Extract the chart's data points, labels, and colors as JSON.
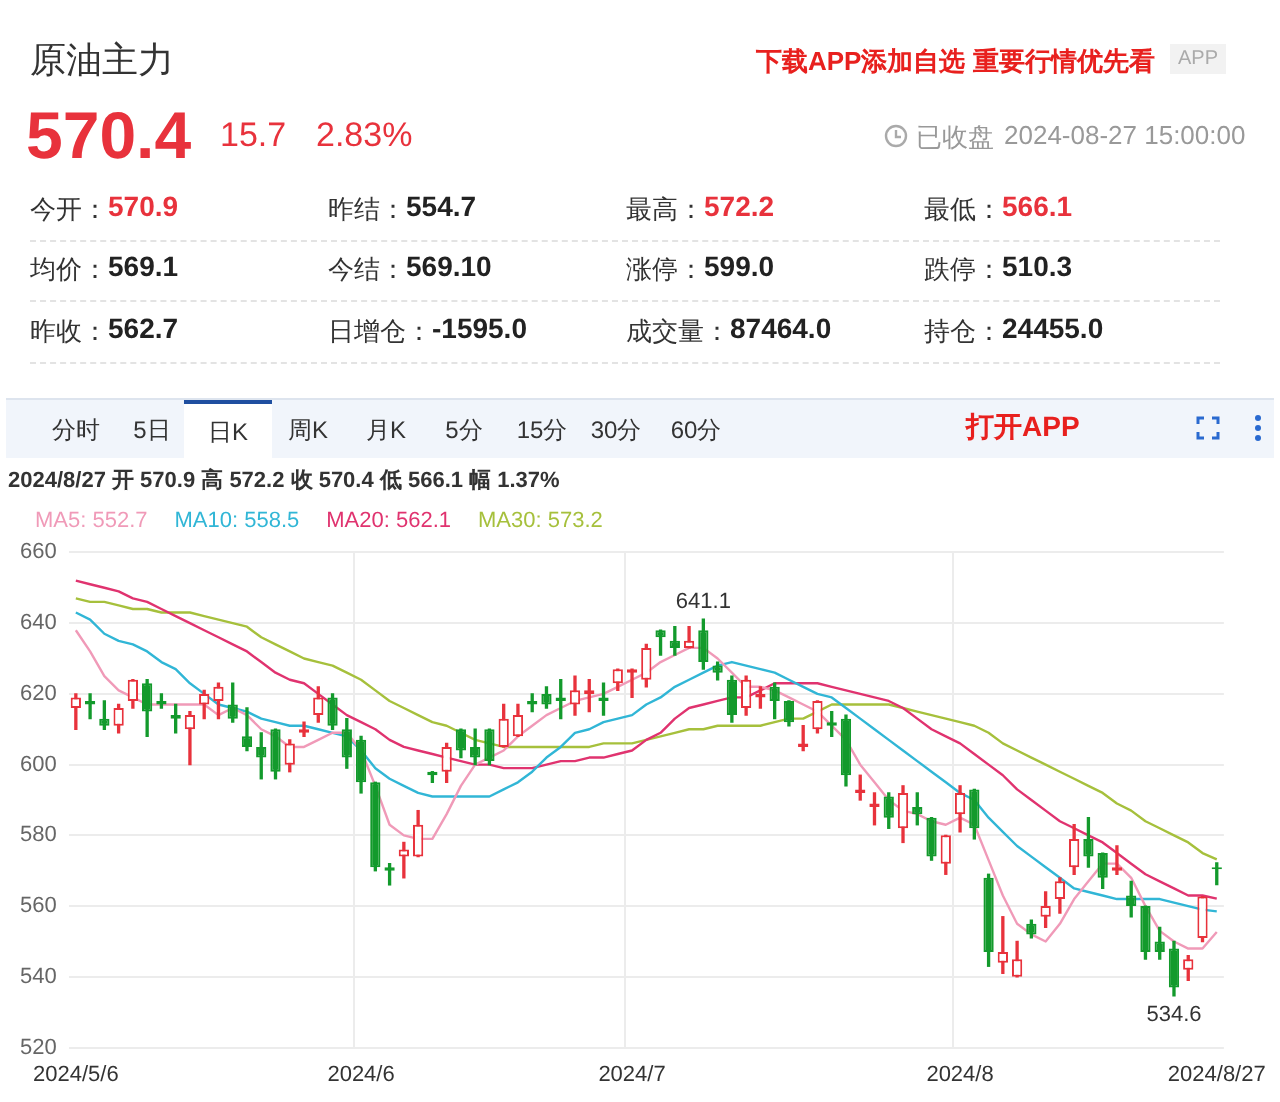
{
  "chart_data": [
    {
      "type": "other",
      "title": "原油主力",
      "annotations": [
        "570.4",
        "15.7",
        "2.83%",
        "已收盘",
        "2024-08-27 15:00:00",
        "下载APP添加自选 重要行情优先看",
        "APP",
        "今开：",
        "570.9",
        "昨结：",
        "554.7",
        "最高：",
        "572.2",
        "最低：",
        "566.1",
        "均价：",
        "569.1",
        "今结：",
        "569.10",
        "涨停：",
        "599.0",
        "跌停：",
        "510.3",
        "昨收：",
        "562.7",
        "日增仓：",
        "-1595.0",
        "成交量：",
        "87464.0",
        "持仓：",
        "24455.0",
        "分时",
        "5日",
        "日K",
        "周K",
        "月K",
        "5分",
        "15分",
        "30分",
        "60分",
        "打开APP"
      ]
    },
    {
      "type": "candlestick",
      "title": "2024/8/27 开 570.9 高 572.2 收 570.4 低 566.1 幅 1.37%",
      "categories": [
        "2024/5/6",
        null,
        null,
        null,
        null,
        null,
        null,
        null,
        null,
        null,
        null,
        null,
        null,
        null,
        null,
        null,
        null,
        null,
        null,
        null,
        "2024/6",
        null,
        null,
        null,
        null,
        null,
        null,
        null,
        null,
        null,
        null,
        null,
        null,
        null,
        null,
        null,
        null,
        null,
        null,
        "2024/7",
        null,
        null,
        null,
        null,
        null,
        null,
        null,
        null,
        null,
        null,
        null,
        null,
        null,
        null,
        null,
        null,
        null,
        null,
        null,
        null,
        null,
        null,
        "2024/8",
        null,
        null,
        null,
        null,
        null,
        null,
        null,
        null,
        null,
        null,
        null,
        null,
        null,
        null,
        null,
        null,
        null,
        "2024/8/27"
      ],
      "ohlc": [
        [
          616,
          620,
          610,
          619
        ],
        [
          618,
          620,
          613,
          617
        ],
        [
          613,
          618,
          610,
          611
        ],
        [
          611,
          617,
          609,
          616
        ],
        [
          618,
          624,
          616,
          624
        ],
        [
          623,
          624,
          608,
          615
        ],
        [
          618,
          620,
          616,
          617
        ],
        [
          614,
          617,
          609,
          613
        ],
        [
          610,
          615,
          600,
          614
        ],
        [
          617,
          621,
          613,
          620
        ],
        [
          618,
          623,
          613,
          622
        ],
        [
          617,
          623,
          612,
          613
        ],
        [
          608,
          616,
          604,
          605
        ],
        [
          605,
          609,
          596,
          602
        ],
        [
          610,
          610,
          596,
          598
        ],
        [
          600,
          607,
          598,
          606
        ],
        [
          609,
          612,
          608,
          610
        ],
        [
          614,
          622,
          612,
          619
        ],
        [
          619,
          620,
          610,
          611
        ],
        [
          610,
          613,
          599,
          602
        ],
        [
          607,
          608,
          592,
          595
        ],
        [
          595,
          595,
          570,
          571
        ],
        [
          571,
          572,
          566,
          570
        ],
        [
          574,
          578,
          568,
          576
        ],
        [
          574,
          587,
          574,
          583
        ],
        [
          598,
          598,
          595,
          597
        ],
        [
          598,
          606,
          595,
          605
        ],
        [
          610,
          610,
          602,
          604
        ],
        [
          605,
          610,
          600,
          602
        ],
        [
          610,
          610,
          600,
          601
        ],
        [
          605,
          617,
          605,
          613
        ],
        [
          608,
          617,
          608,
          614
        ],
        [
          618,
          620,
          615,
          617
        ],
        [
          620,
          622,
          616,
          617
        ],
        [
          619,
          624,
          613,
          618
        ],
        [
          617,
          625,
          614,
          621
        ],
        [
          620,
          624,
          615,
          621
        ],
        [
          619,
          623,
          614,
          618
        ],
        [
          623,
          627,
          621,
          627
        ],
        [
          626,
          627,
          619,
          627
        ],
        [
          624,
          634,
          622,
          633
        ],
        [
          638,
          638,
          631,
          636
        ],
        [
          635,
          639,
          631,
          633
        ],
        [
          633,
          639,
          633,
          635
        ],
        [
          638,
          641.1,
          627,
          629
        ],
        [
          628,
          629,
          624,
          626
        ],
        [
          624,
          625,
          612,
          614
        ],
        [
          616,
          625,
          614,
          624
        ],
        [
          619,
          622,
          616,
          620
        ],
        [
          622,
          623,
          613,
          618
        ],
        [
          618,
          618,
          611,
          612
        ],
        [
          605,
          611,
          604,
          606
        ],
        [
          610,
          618,
          609,
          618
        ],
        [
          612,
          615,
          608,
          611
        ],
        [
          613,
          614,
          594,
          597
        ],
        [
          592,
          597,
          590,
          593
        ],
        [
          588,
          592,
          583,
          589
        ],
        [
          591,
          592,
          582,
          585
        ],
        [
          582,
          594,
          578,
          592
        ],
        [
          588,
          592,
          583,
          586
        ],
        [
          585,
          585,
          573,
          574
        ],
        [
          572,
          580,
          569,
          580
        ],
        [
          586,
          594,
          581,
          592
        ],
        [
          593,
          593,
          579,
          582
        ],
        [
          568,
          569,
          543,
          547
        ],
        [
          544,
          557,
          541,
          547
        ],
        [
          540,
          550,
          540,
          545
        ],
        [
          555,
          556,
          551,
          552
        ],
        [
          557,
          564,
          554,
          560
        ],
        [
          562,
          568,
          558,
          567
        ],
        [
          571,
          583,
          569,
          579
        ],
        [
          579,
          585,
          571,
          574
        ],
        [
          575,
          575,
          565,
          568
        ],
        [
          570,
          577,
          569,
          571
        ],
        [
          563,
          567,
          557,
          560
        ],
        [
          560,
          560,
          545,
          547
        ],
        [
          550,
          554,
          545,
          547
        ],
        [
          548,
          550,
          534.6,
          537
        ],
        [
          542,
          546,
          539,
          545
        ],
        [
          551,
          562.7,
          550,
          562.7
        ],
        [
          570.9,
          572.2,
          566.1,
          570.4
        ]
      ],
      "series": [
        {
          "name": "MA5: 552.7",
          "type": "line",
          "color": "#f09ab8",
          "values": [
            638,
            632,
            625,
            621,
            619,
            617,
            617,
            617,
            617,
            617,
            614,
            616,
            614,
            610,
            608,
            605,
            605,
            607,
            609,
            609,
            604,
            594,
            583,
            580,
            579,
            579,
            586,
            594,
            600,
            602,
            604,
            608,
            611,
            614,
            616,
            618,
            619,
            620,
            622,
            624,
            626,
            629,
            631,
            633,
            633,
            630,
            626,
            622,
            622,
            621,
            619,
            617,
            615,
            611,
            607,
            600,
            595,
            590,
            587,
            586,
            584,
            583,
            585,
            583,
            573,
            563,
            555,
            552,
            550,
            555,
            562,
            567,
            572,
            572,
            568,
            560,
            553,
            550,
            548,
            548,
            552.7
          ]
        },
        {
          "name": "MA10: 558.5",
          "type": "line",
          "color": "#31b6d6",
          "values": [
            643,
            641,
            637,
            635,
            634,
            632,
            629,
            627,
            623,
            620,
            617,
            616,
            615,
            613,
            612,
            611,
            611,
            610,
            609,
            608,
            604,
            599,
            596,
            594,
            592,
            591,
            591,
            591,
            591,
            591,
            593,
            595,
            598,
            602,
            605,
            609,
            610,
            612,
            613,
            614,
            617,
            619,
            622,
            624,
            626,
            628,
            629,
            628,
            627,
            626,
            624,
            622,
            620,
            619,
            616,
            613,
            610,
            607,
            604,
            601,
            598,
            595,
            592,
            590,
            585,
            581,
            577,
            574,
            571,
            568,
            565,
            564,
            563,
            562,
            562,
            562,
            562,
            561,
            560,
            559,
            558.5
          ]
        },
        {
          "name": "MA20: 562.1",
          "type": "line",
          "color": "#e0336f",
          "values": [
            652,
            651,
            650,
            649,
            647,
            646,
            644,
            642,
            640,
            638,
            636,
            634,
            632,
            629,
            626,
            624,
            623,
            620,
            617,
            614,
            612,
            610,
            607,
            605,
            604,
            603,
            602,
            601,
            600,
            600,
            599,
            599,
            599,
            600,
            601,
            601,
            602,
            602,
            603,
            604,
            607,
            609,
            613,
            616,
            617,
            618,
            619,
            619,
            621,
            623,
            623,
            623,
            623,
            622,
            621,
            620,
            619,
            618,
            616,
            613,
            610,
            608,
            606,
            603,
            600,
            597,
            593,
            590,
            587,
            584,
            582,
            580,
            578,
            575,
            572,
            569,
            567,
            565,
            563,
            563,
            562.1
          ]
        },
        {
          "name": "MA30: 573.2",
          "type": "line",
          "color": "#a6c03c",
          "values": [
            647,
            646,
            646,
            645,
            644,
            644,
            643,
            643,
            643,
            642,
            641,
            640,
            639,
            636,
            634,
            632,
            630,
            629,
            628,
            626,
            624,
            621,
            618,
            616,
            614,
            612,
            611,
            609,
            607,
            606,
            605,
            605,
            605,
            605,
            605,
            605,
            605,
            606,
            606,
            606,
            607,
            608,
            609,
            610,
            610,
            611,
            611,
            611,
            611,
            612,
            613,
            613,
            615,
            617,
            617,
            617,
            617,
            617,
            616,
            615,
            614,
            613,
            612,
            611,
            609,
            606,
            604,
            602,
            600,
            598,
            596,
            594,
            592,
            589,
            587,
            584,
            582,
            580,
            578,
            575,
            573.2
          ]
        }
      ],
      "ylim": [
        520,
        660
      ],
      "yticks": [
        520,
        540,
        560,
        580,
        600,
        620,
        640,
        660
      ],
      "grid": true,
      "legend": "top",
      "marker": "none",
      "line_style": "solid",
      "annotations": [
        {
          "text": "641.1",
          "y": 641.1
        },
        {
          "text": "534.6",
          "y": 534.6
        }
      ]
    }
  ]
}
